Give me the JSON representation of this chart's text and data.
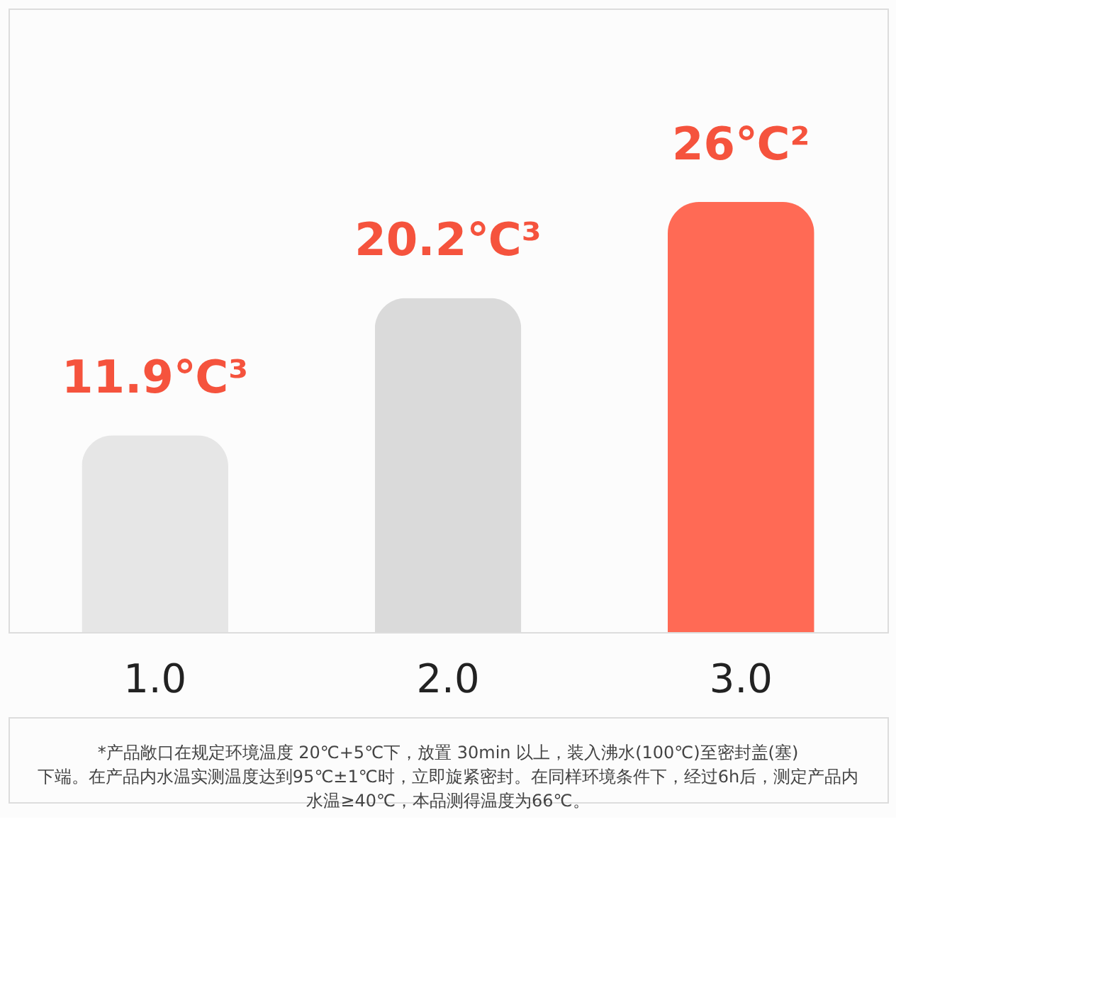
{
  "chart_data": {
    "type": "bar",
    "categories": [
      "1.0",
      "2.0",
      "3.0"
    ],
    "values": [
      11.9,
      20.2,
      26
    ],
    "colors": [
      "#e6e6e6",
      "#dadada",
      "#ff6a55"
    ],
    "value_labels": [
      "11.9℃³",
      "20.2℃³",
      "26℃²"
    ],
    "annotations": [
      "*产品敞口在规定环境温度 20℃+5℃下，放置 30min 以上，装入沸水(100℃)至密封盖(塞)下端。在产品内水温实测温度达到95℃±1℃时，立即旋紧密封。在同样环境条件下，经过6h后，测定产品内水温≥40℃，本品测得温度为66℃。"
    ],
    "grid": false
  }
}
